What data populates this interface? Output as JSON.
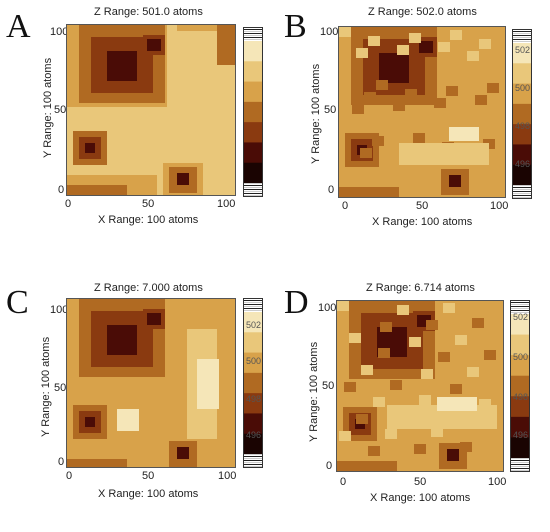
{
  "panels": [
    {
      "letter": "A",
      "ztitle": "Z Range:  501.0 atoms",
      "ylabel": "Y Range: 100 atoms",
      "xlabel": "X Range: 100 atoms",
      "xticks": [
        "0",
        "50",
        "100"
      ],
      "yticks": [
        "100",
        "50",
        "0"
      ],
      "cbar_ticks": []
    },
    {
      "letter": "B",
      "ztitle": "Z Range:  502.0 atoms",
      "ylabel": "Y Range: 100 atoms",
      "xlabel": "X Range: 100 atoms",
      "xticks": [
        "0",
        "50",
        "100"
      ],
      "yticks": [
        "100",
        "50",
        "0"
      ],
      "cbar_ticks": [
        "502",
        "500",
        "498",
        "496"
      ]
    },
    {
      "letter": "C",
      "ztitle": "Z Range:  7.000 atoms",
      "ylabel": "Y Range: 100 atoms",
      "xlabel": "X Range: 100 atoms",
      "xticks": [
        "0",
        "50",
        "100"
      ],
      "yticks": [
        "100",
        "50",
        "0"
      ],
      "cbar_ticks": [
        "502",
        "500",
        "498",
        "496"
      ]
    },
    {
      "letter": "D",
      "ztitle": "Z Range:  6.714 atoms",
      "ylabel": "Y Range: 100 atoms",
      "xlabel": "X Range: 100 atoms",
      "xticks": [
        "0",
        "50",
        "100"
      ],
      "yticks": [
        "100",
        "50",
        "0"
      ],
      "cbar_ticks": [
        "502",
        "500",
        "498",
        "496"
      ]
    }
  ],
  "colors": {
    "dark": "#4a0c06",
    "mid": "#8a3a10",
    "brown": "#b06a22",
    "tan": "#d8a24a",
    "light": "#e9c77a",
    "pale": "#f5e6b8"
  }
}
